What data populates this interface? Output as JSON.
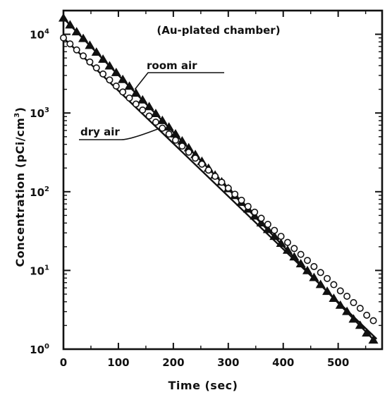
{
  "chart_data": {
    "type": "scatter",
    "title": "(Au-plated chamber)",
    "xlabel": "Time (sec)",
    "ylabel": "Concentration (pCi/cm³)",
    "ylabel_base": "Concentration (pCi/cm",
    "ylabel_exp": "3",
    "ylabel_close": ")",
    "xlim": [
      0,
      580
    ],
    "ylim": [
      1,
      20000
    ],
    "yscale": "log",
    "xticks": [
      "0",
      "100",
      "200",
      "300",
      "400",
      "500"
    ],
    "xtick_values": [
      0,
      100,
      200,
      300,
      400,
      500
    ],
    "yticks": [
      {
        "base": "10",
        "exp": "0",
        "value": 1
      },
      {
        "base": "10",
        "exp": "1",
        "value": 10
      },
      {
        "base": "10",
        "exp": "2",
        "value": 100
      },
      {
        "base": "10",
        "exp": "3",
        "value": 1000
      },
      {
        "base": "10",
        "exp": "4",
        "value": 10000
      }
    ],
    "grid": false,
    "legend": "none",
    "series": [
      {
        "name": "room air",
        "marker": "triangle",
        "fit": {
          "x": [
            0,
            570
          ],
          "y": [
            16000,
            1.2
          ]
        },
        "x": [
          0,
          12,
          24,
          36,
          48,
          60,
          72,
          84,
          96,
          108,
          120,
          132,
          144,
          156,
          168,
          180,
          192,
          204,
          216,
          228,
          240,
          252,
          264,
          276,
          288,
          300,
          312,
          324,
          336,
          348,
          360,
          372,
          384,
          396,
          408,
          420,
          432,
          444,
          456,
          468,
          480,
          492,
          504,
          516,
          528,
          540,
          552,
          564
        ],
        "y": [
          16000,
          13100,
          10700,
          8800,
          7200,
          5900,
          4800,
          3950,
          3250,
          2650,
          2180,
          1780,
          1460,
          1200,
          980,
          800,
          660,
          540,
          440,
          360,
          295,
          242,
          198,
          162,
          133,
          109,
          89,
          73,
          60,
          49,
          40,
          33,
          27,
          22,
          18,
          14.8,
          12.1,
          9.9,
          8.1,
          6.6,
          5.4,
          4.4,
          3.6,
          3.0,
          2.4,
          2.0,
          1.6,
          1.3
        ]
      },
      {
        "name": "dry air",
        "marker": "circle",
        "fit": {
          "x": [
            0,
            570
          ],
          "y": [
            9000,
            1.35
          ]
        },
        "x": [
          0,
          12,
          24,
          36,
          48,
          60,
          72,
          84,
          96,
          108,
          120,
          132,
          144,
          156,
          168,
          180,
          192,
          204,
          216,
          228,
          240,
          252,
          264,
          276,
          288,
          300,
          312,
          324,
          336,
          348,
          360,
          372,
          384,
          396,
          408,
          420,
          432,
          444,
          456,
          468,
          480,
          492,
          504,
          516,
          528,
          540,
          552,
          564
        ],
        "y": [
          9000,
          7550,
          6330,
          5310,
          4450,
          3740,
          3130,
          2630,
          2200,
          1850,
          1550,
          1300,
          1090,
          915,
          765,
          642,
          540,
          452,
          380,
          318,
          267,
          224,
          188,
          157,
          132,
          111,
          93,
          78,
          65,
          55,
          46,
          38.5,
          32.3,
          27.1,
          22.7,
          19.0,
          16.0,
          13.4,
          11.2,
          9.4,
          7.9,
          6.6,
          5.5,
          4.7,
          3.9,
          3.3,
          2.7,
          2.3
        ]
      }
    ],
    "annotations": [
      {
        "text": "room air",
        "points_to": {
          "x": 130,
          "y": 2000
        }
      },
      {
        "text": "dry air",
        "points_to": {
          "x": 175,
          "y": 640
        }
      }
    ]
  }
}
